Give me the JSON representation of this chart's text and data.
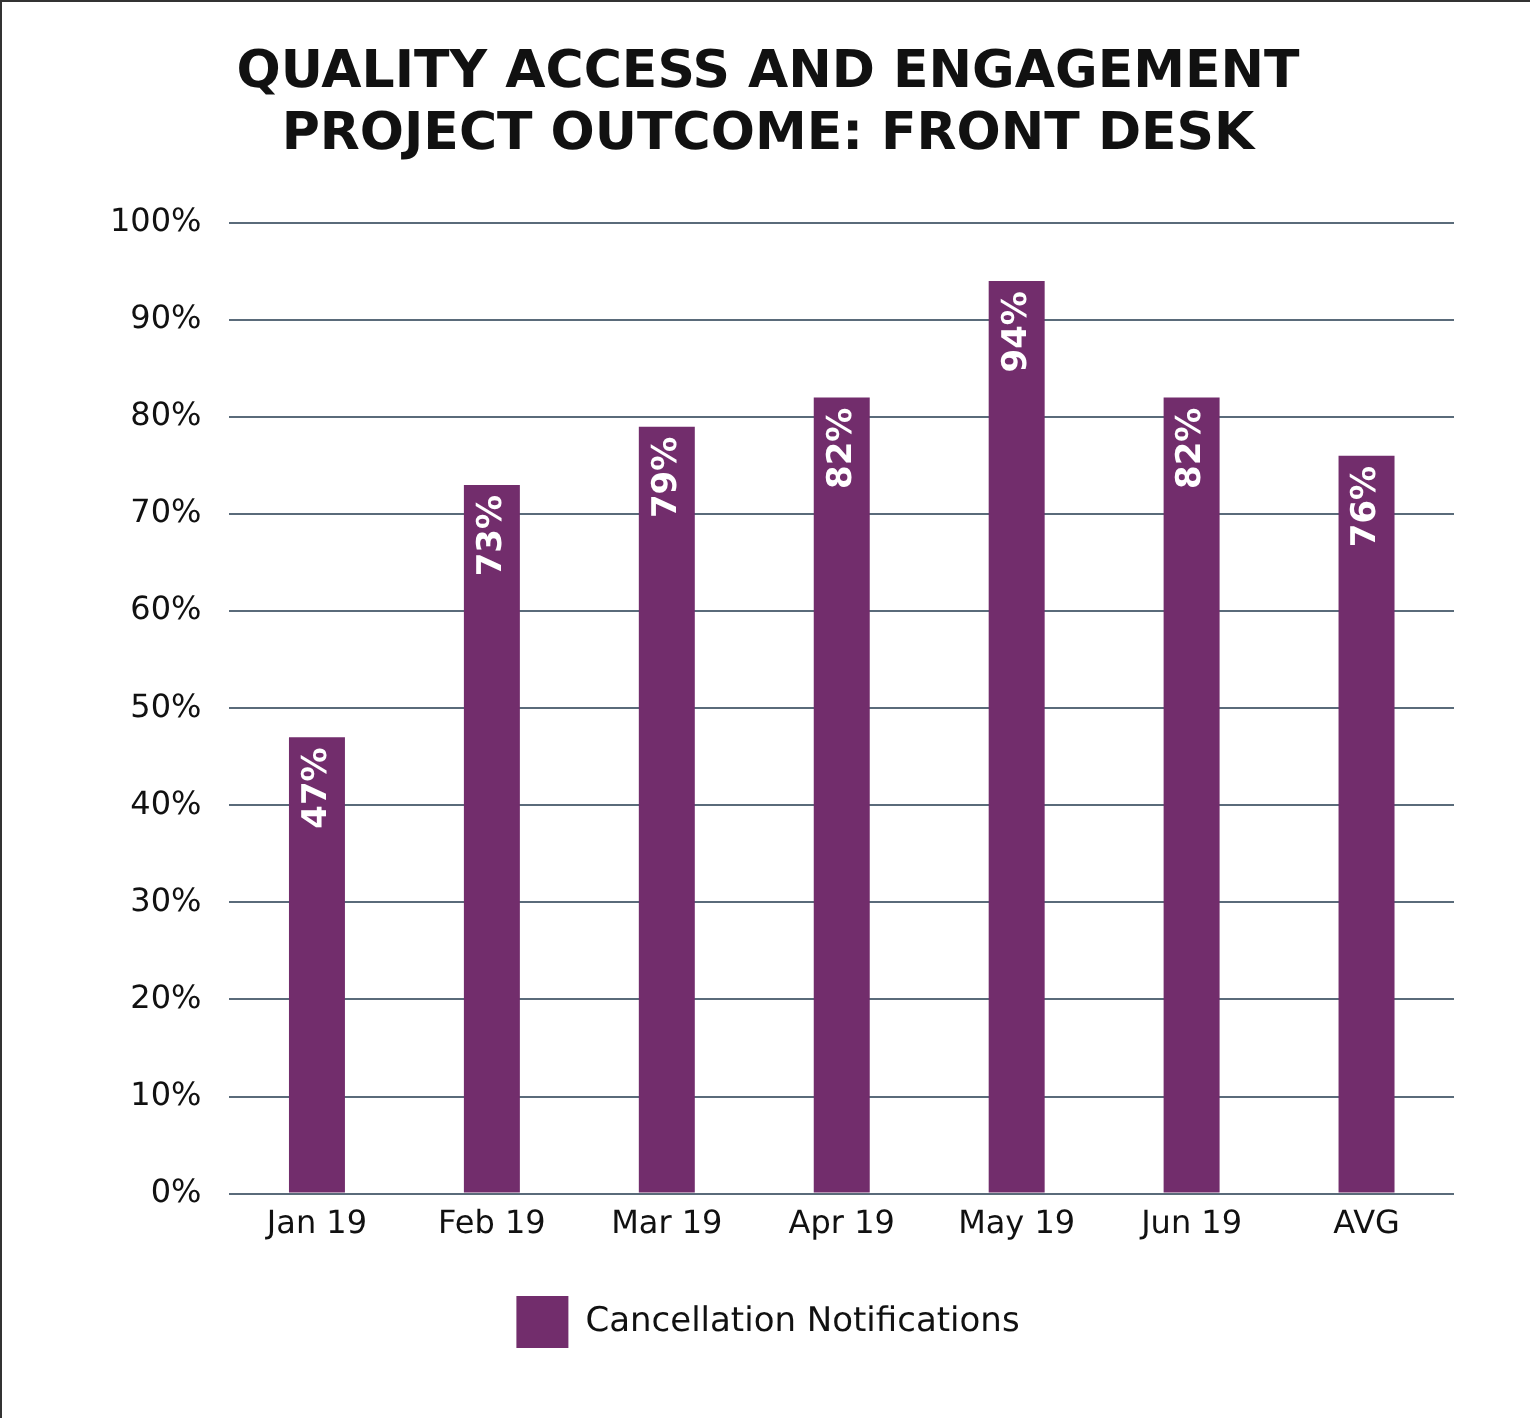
{
  "chart_data": {
    "type": "bar",
    "title": [
      "QUALITY ACCESS AND ENGAGEMENT",
      "PROJECT OUTCOME: FRONT DESK"
    ],
    "categories": [
      "Jan 19",
      "Feb 19",
      "Mar 19",
      "Apr 19",
      "May 19",
      "Jun 19",
      "AVG"
    ],
    "series": [
      {
        "name": "Cancellation Notifications",
        "color": "#722d6c",
        "values": [
          47,
          73,
          79,
          82,
          94,
          82,
          76
        ],
        "value_labels": [
          "47%",
          "73%",
          "79%",
          "82%",
          "94%",
          "82%",
          "76%"
        ]
      }
    ],
    "ylim": [
      0,
      100
    ],
    "yticks": [
      {
        "value": 0,
        "label": "0%"
      },
      {
        "value": 10,
        "label": "10%"
      },
      {
        "value": 20,
        "label": "20%"
      },
      {
        "value": 30,
        "label": "30%"
      },
      {
        "value": 40,
        "label": "40%"
      },
      {
        "value": 50,
        "label": "50%"
      },
      {
        "value": 60,
        "label": "60%"
      },
      {
        "value": 70,
        "label": "70%"
      },
      {
        "value": 80,
        "label": "80%"
      },
      {
        "value": 90,
        "label": "90%"
      },
      {
        "value": 100,
        "label": "100%"
      }
    ],
    "grid": "y",
    "legend": "bottom"
  }
}
